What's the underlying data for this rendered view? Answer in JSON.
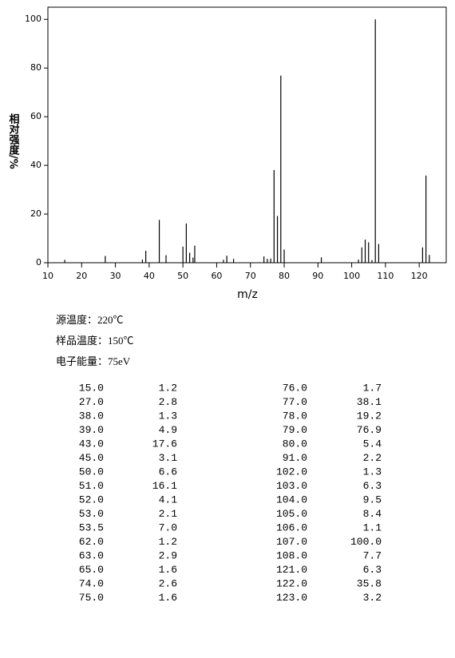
{
  "chart_data": {
    "type": "bar",
    "xlabel": "m/z",
    "ylabel": "相对强度/%",
    "x": [
      15,
      27,
      38,
      39,
      43,
      45,
      50,
      51,
      52,
      53,
      53.5,
      62,
      63,
      65,
      74,
      75,
      76,
      77,
      78,
      79,
      80,
      91,
      102,
      103,
      104,
      105,
      106,
      107,
      108,
      121,
      122,
      123
    ],
    "values": [
      1.2,
      2.8,
      1.3,
      4.9,
      17.6,
      3.1,
      6.6,
      16.1,
      4.1,
      2.1,
      7.0,
      1.2,
      2.9,
      1.6,
      2.6,
      1.6,
      1.7,
      38.1,
      19.2,
      76.9,
      5.4,
      2.2,
      1.3,
      6.3,
      9.5,
      8.4,
      1.1,
      100.0,
      7.7,
      6.3,
      35.8,
      3.2
    ],
    "color": "#000000",
    "xlim": [
      10,
      128
    ],
    "xticks": [
      10,
      20,
      30,
      40,
      50,
      60,
      70,
      80,
      90,
      100,
      110,
      120
    ],
    "ylim": [
      0,
      105
    ],
    "yticks": [
      0,
      20,
      40,
      60,
      80,
      100
    ]
  },
  "info": [
    "源温度：220℃",
    "样品温度：150℃",
    "电子能量：75eV"
  ],
  "table": {
    "rows": [
      [
        "15.0",
        "1.2",
        "76.0",
        "1.7"
      ],
      [
        "27.0",
        "2.8",
        "77.0",
        "38.1"
      ],
      [
        "38.0",
        "1.3",
        "78.0",
        "19.2"
      ],
      [
        "39.0",
        "4.9",
        "79.0",
        "76.9"
      ],
      [
        "43.0",
        "17.6",
        "80.0",
        "5.4"
      ],
      [
        "45.0",
        "3.1",
        "91.0",
        "2.2"
      ],
      [
        "50.0",
        "6.6",
        "102.0",
        "1.3"
      ],
      [
        "51.0",
        "16.1",
        "103.0",
        "6.3"
      ],
      [
        "52.0",
        "4.1",
        "104.0",
        "9.5"
      ],
      [
        "53.0",
        "2.1",
        "105.0",
        "8.4"
      ],
      [
        "53.5",
        "7.0",
        "106.0",
        "1.1"
      ],
      [
        "62.0",
        "1.2",
        "107.0",
        "100.0"
      ],
      [
        "63.0",
        "2.9",
        "108.0",
        "7.7"
      ],
      [
        "65.0",
        "1.6",
        "121.0",
        "6.3"
      ],
      [
        "74.0",
        "2.6",
        "122.0",
        "35.8"
      ],
      [
        "75.0",
        "1.6",
        "123.0",
        "3.2"
      ]
    ]
  }
}
